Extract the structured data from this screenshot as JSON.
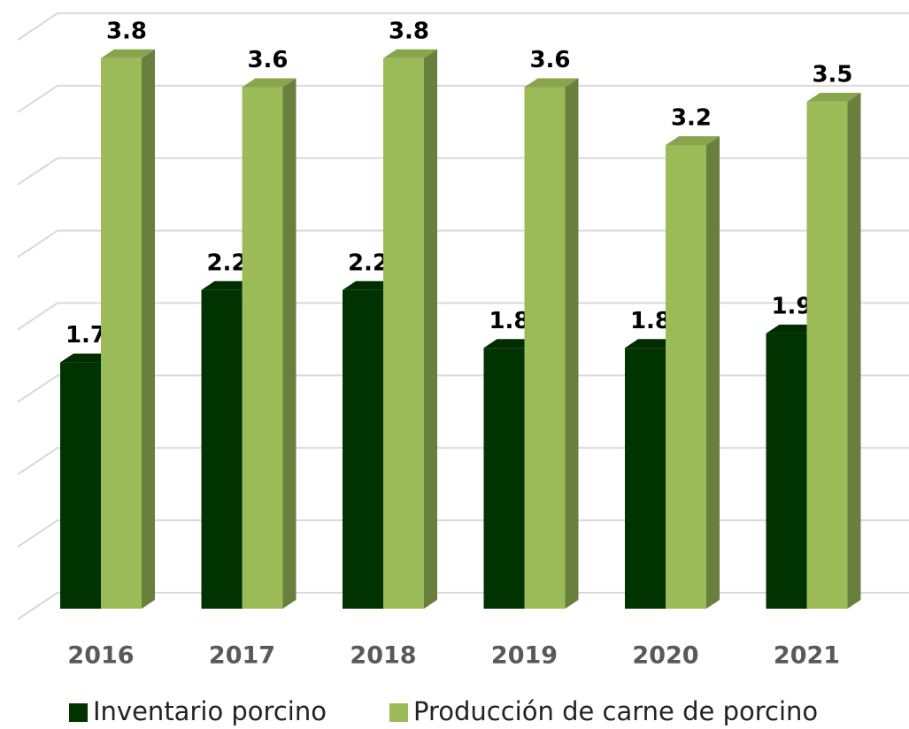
{
  "chart_data": {
    "type": "bar3d",
    "categories": [
      "2016",
      "2017",
      "2018",
      "2019",
      "2020",
      "2021"
    ],
    "series": [
      {
        "name": "Inventario porcino",
        "color": "#003300",
        "values": [
          1.7,
          2.2,
          2.2,
          1.8,
          1.8,
          1.9
        ]
      },
      {
        "name": "Producción de carne de porcino",
        "color": "#9bbb59",
        "values": [
          3.8,
          3.6,
          3.8,
          3.6,
          3.2,
          3.5
        ]
      }
    ],
    "ylim": [
      0,
      4
    ],
    "yticks": [
      0,
      0.5,
      1,
      1.5,
      2,
      2.5,
      3,
      3.5,
      4
    ],
    "grid": true,
    "legend": "bottom"
  }
}
